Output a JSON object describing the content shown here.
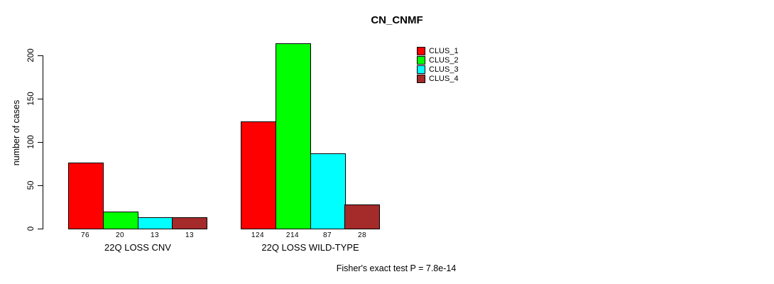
{
  "title": "CN_CNMF",
  "ylabel": "number of cases",
  "footer": "Fisher's exact test P = 7.8e-14",
  "chart_data": {
    "type": "bar",
    "title": "CN_CNMF",
    "xlabel": "",
    "ylabel": "number of cases",
    "categories": [
      "22Q LOSS CNV",
      "22Q LOSS WILD-TYPE"
    ],
    "series": [
      {
        "name": "CLUS_1",
        "color": "#FF0000",
        "values": [
          76,
          124
        ]
      },
      {
        "name": "CLUS_2",
        "color": "#00FF00",
        "values": [
          20,
          214
        ]
      },
      {
        "name": "CLUS_3",
        "color": "#00FFFF",
        "values": [
          13,
          87
        ]
      },
      {
        "name": "CLUS_4",
        "color": "#A52A2A",
        "values": [
          13,
          28
        ]
      }
    ],
    "bar_value_labels": [
      [
        76,
        20,
        13,
        13
      ],
      [
        124,
        214,
        87,
        28
      ]
    ],
    "ylim": [
      0,
      200
    ],
    "yticks": [
      0,
      50,
      100,
      150,
      200
    ],
    "grid": false,
    "legend_position": "top-right",
    "legend_entries": [
      "CLUS_1",
      "CLUS_2",
      "CLUS_3",
      "CLUS_4"
    ],
    "annotation": "Fisher's exact test P = 7.8e-14",
    "axis_color": "#000000",
    "bar_border_color": "#000000",
    "background_color": "#FFFFFF"
  }
}
